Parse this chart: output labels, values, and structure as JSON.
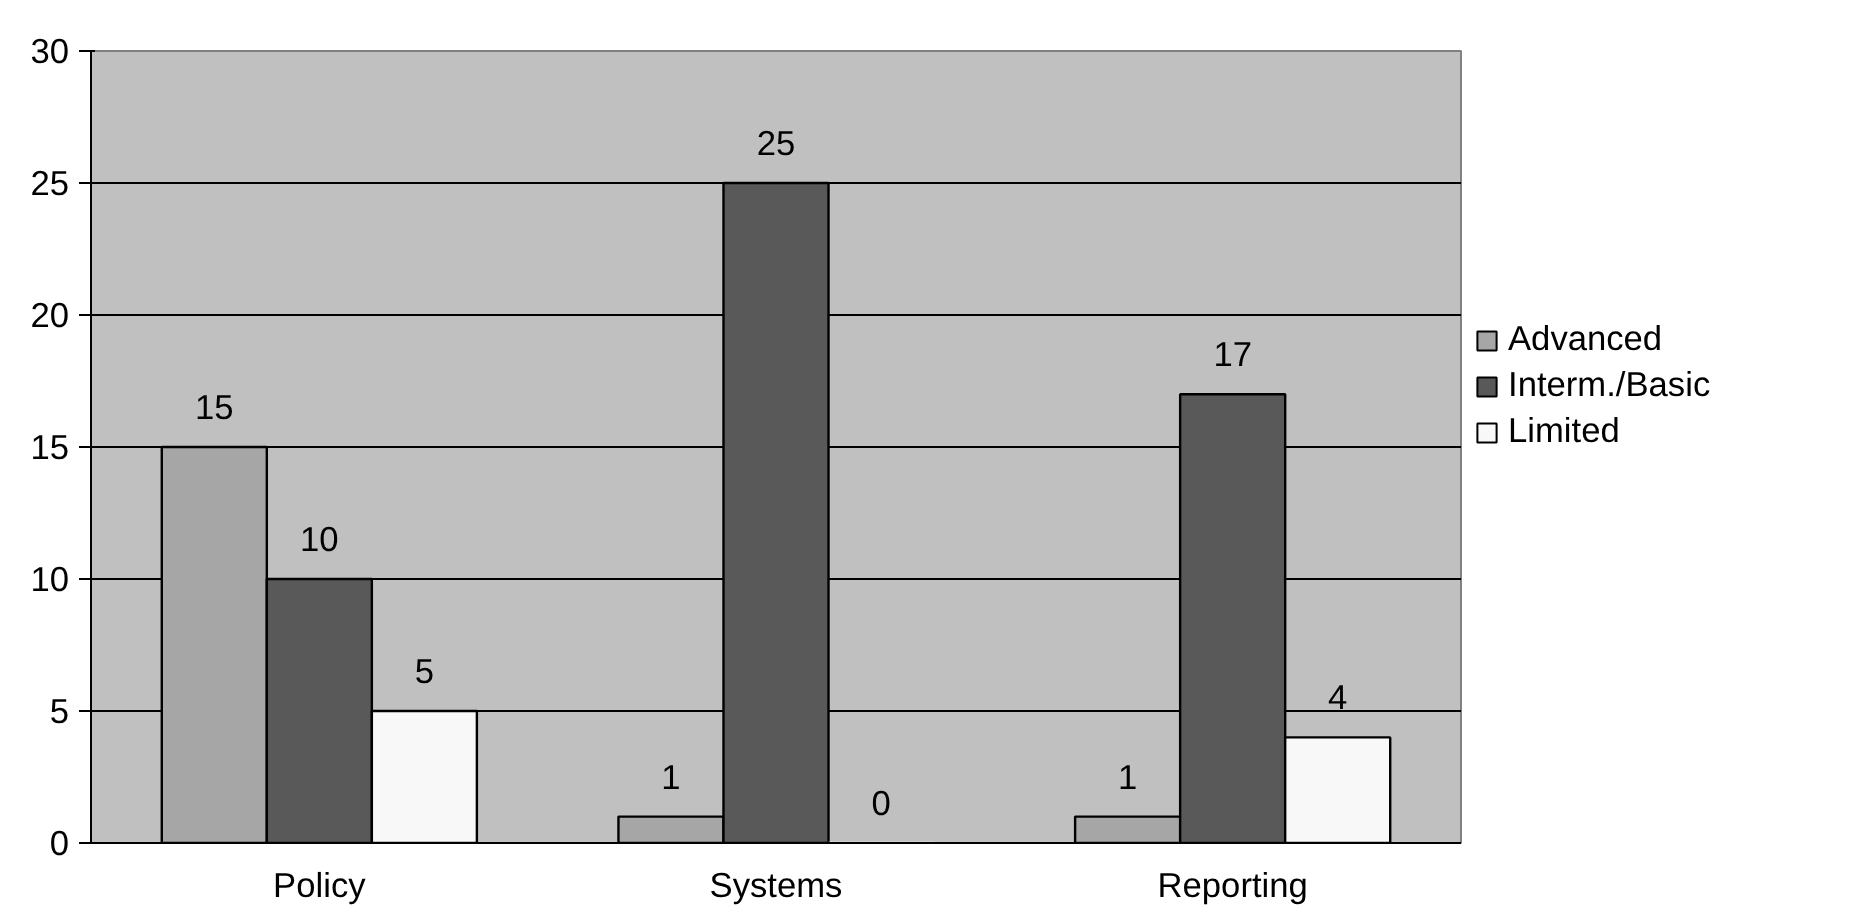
{
  "chart_data": {
    "type": "bar",
    "categories": [
      "Policy",
      "Systems",
      "Reporting"
    ],
    "series": [
      {
        "name": "Advanced",
        "color": "#a6a6a6",
        "values": [
          15,
          1,
          1
        ]
      },
      {
        "name": "Interm./Basic",
        "color": "#595959",
        "values": [
          10,
          25,
          17
        ]
      },
      {
        "name": "Limited",
        "color": "#f8f8f8",
        "values": [
          5,
          0,
          4
        ]
      }
    ],
    "ylim": [
      0,
      30
    ],
    "yticks": [
      0,
      5,
      10,
      15,
      20,
      25,
      30
    ],
    "grid": "y",
    "legend": "right",
    "data_labels": true
  }
}
